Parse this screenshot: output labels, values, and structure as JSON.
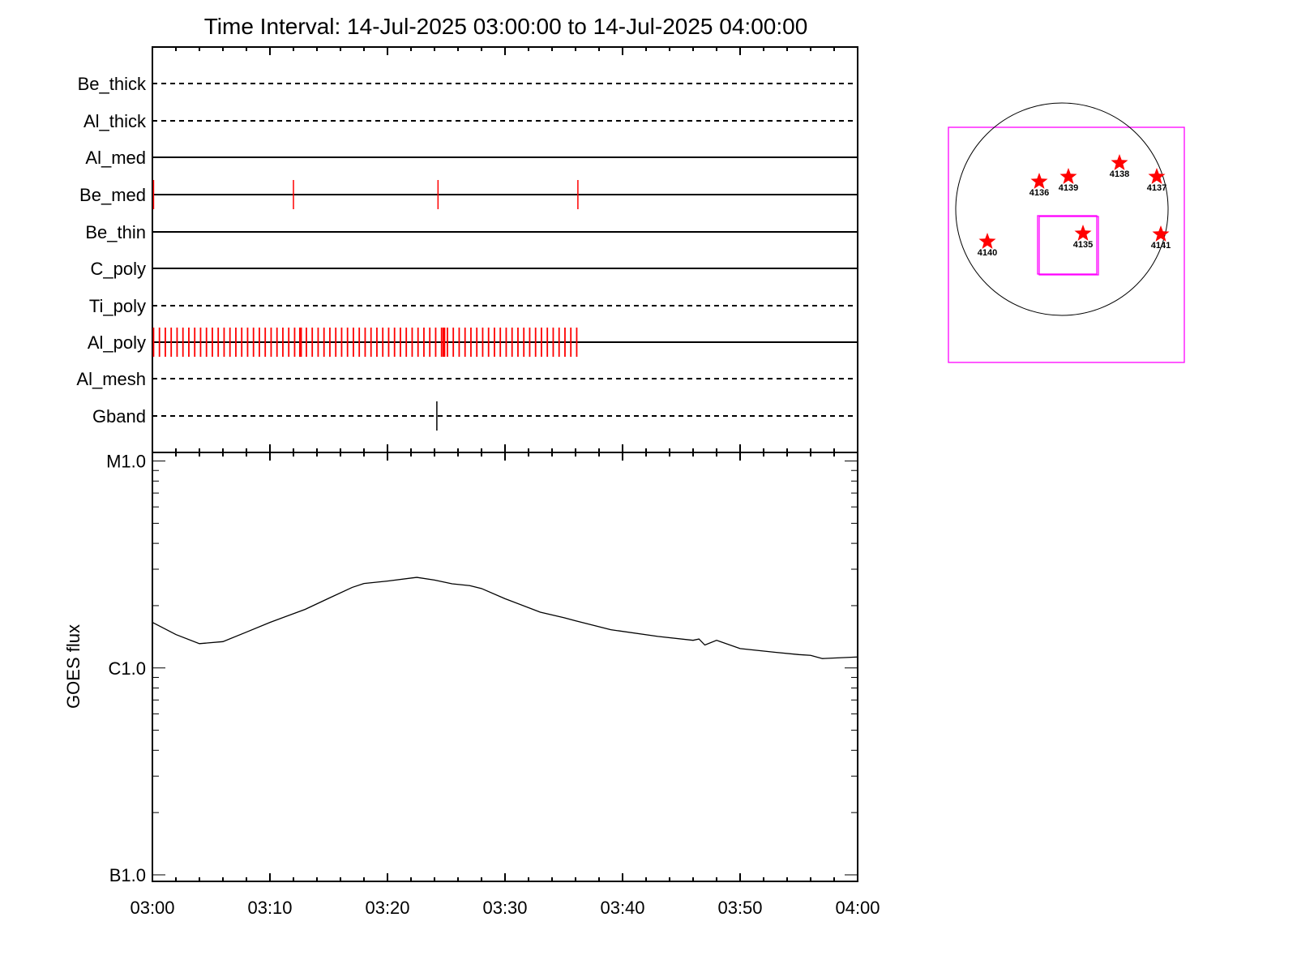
{
  "title": "Time Interval: 14-Jul-2025 03:00:00 to 14-Jul-2025 04:00:00",
  "colors": {
    "event": "#ff0000",
    "gband_event": "#000000",
    "box": "#ff00ff",
    "curve": "#000000"
  },
  "chart_data": [
    {
      "type": "timeline",
      "x_range": [
        "03:00",
        "04:00"
      ],
      "rows": [
        {
          "label": "Be_thick",
          "style": "dashed",
          "events_min": []
        },
        {
          "label": "Al_thick",
          "style": "dashed",
          "events_min": []
        },
        {
          "label": "Al_med",
          "style": "solid",
          "events_min": []
        },
        {
          "label": "Be_med",
          "style": "solid",
          "events_min": [
            0.1,
            12.0,
            24.3,
            36.2
          ]
        },
        {
          "label": "Be_thin",
          "style": "solid",
          "events_min": []
        },
        {
          "label": "C_poly",
          "style": "solid",
          "events_min": []
        },
        {
          "label": "Ti_poly",
          "style": "dashed",
          "events_min": []
        },
        {
          "label": "Al_poly",
          "style": "solid",
          "events_regular": {
            "start_min": 0.1,
            "end_min": 36.2,
            "step_min": 0.5
          },
          "events_min": [
            12.6,
            24.8
          ]
        },
        {
          "label": "Al_mesh",
          "style": "dashed",
          "events_min": []
        },
        {
          "label": "Gband",
          "style": "dashed",
          "events_min": [
            24.2
          ]
        }
      ]
    },
    {
      "type": "line",
      "ylabel": "GOES flux",
      "yscale": "log",
      "ylim": [
        9.3e-08,
        1.1e-05
      ],
      "yticks": [
        {
          "value": 1e-07,
          "label": "B1.0"
        },
        {
          "value": 1e-06,
          "label": "C1.0"
        },
        {
          "value": 1e-05,
          "label": "M1.0"
        }
      ],
      "xticks": [
        "03:00",
        "03:10",
        "03:20",
        "03:30",
        "03:40",
        "03:50",
        "04:00"
      ],
      "x_min": [
        0,
        2,
        4,
        6,
        8,
        10,
        13,
        15,
        17,
        18,
        20,
        22.5,
        24,
        25.5,
        27,
        28,
        30,
        33,
        35,
        36,
        39,
        43,
        46,
        46.5,
        47,
        48,
        50,
        53,
        55,
        56,
        57,
        60
      ],
      "values": [
        1.66e-06,
        1.45e-06,
        1.31e-06,
        1.34e-06,
        1.49e-06,
        1.66e-06,
        1.92e-06,
        2.17e-06,
        2.45e-06,
        2.56e-06,
        2.63e-06,
        2.74e-06,
        2.66e-06,
        2.55e-06,
        2.5e-06,
        2.42e-06,
        2.16e-06,
        1.86e-06,
        1.75e-06,
        1.69e-06,
        1.53e-06,
        1.42e-06,
        1.36e-06,
        1.38e-06,
        1.29e-06,
        1.36e-06,
        1.24e-06,
        1.19e-06,
        1.16e-06,
        1.15e-06,
        1.11e-06,
        1.13e-06
      ]
    },
    {
      "type": "map",
      "regions": [
        {
          "label": "4136"
        },
        {
          "label": "4139"
        },
        {
          "label": "4138"
        },
        {
          "label": "4137"
        },
        {
          "label": "4140"
        },
        {
          "label": "4135"
        },
        {
          "label": "4141"
        }
      ]
    }
  ]
}
